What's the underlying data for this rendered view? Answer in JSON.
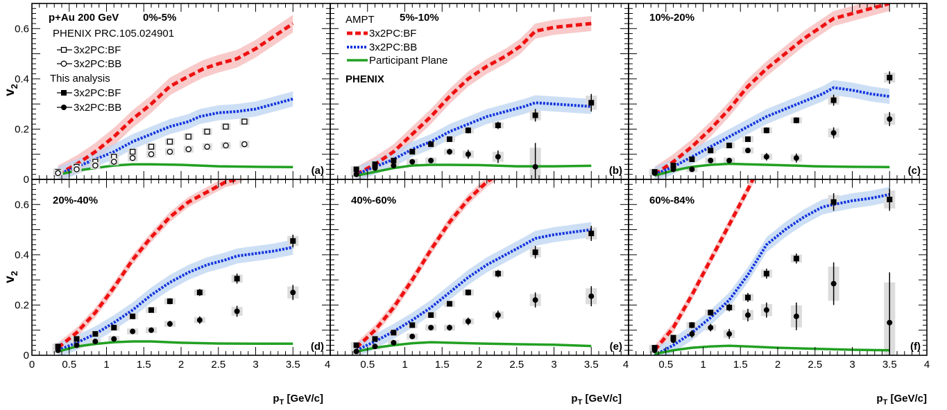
{
  "figure": {
    "ylabel": "v",
    "ylabel_sub": "2",
    "xlabel": "p",
    "xlabel_sub": "T",
    "xlabel_unit": " [GeV/c]"
  },
  "legends": {
    "system": "p+Au 200 GeV",
    "phenix_ref": "PHENIX PRC.105.024901",
    "this_analysis": "This analysis",
    "bf": "3x2PC:BF",
    "bb": "3x2PC:BB",
    "ampt": "AMPT",
    "participant_plane": "Participant Plane",
    "phenix": "PHENIX"
  },
  "colors": {
    "ampt_bf": "#ee1111",
    "ampt_bb": "#1133dd",
    "participant_plane": "#22a022",
    "ampt_bf_band": "#f7b8b8",
    "ampt_bb_band": "#bcd4f2",
    "syst_box": "#dcdcdc"
  },
  "chart_data": [
    {
      "type": "scatter",
      "panel_label": "(a)",
      "centrality": "0%-5%",
      "xlim": [
        0,
        4
      ],
      "ylim": [
        0,
        0.7
      ],
      "x_ticks": [
        "0",
        "0.5",
        "1",
        "1.5",
        "2",
        "2.5",
        "3",
        "3.5",
        "4"
      ],
      "y_ticks": [
        "0",
        "0.2",
        "0.4",
        "0.6"
      ],
      "ampt_bf": {
        "x": [
          0.35,
          0.6,
          0.85,
          1.1,
          1.35,
          1.6,
          1.85,
          2.1,
          2.3,
          2.5,
          2.75,
          3.0,
          3.25,
          3.5
        ],
        "y": [
          0.02,
          0.06,
          0.11,
          0.17,
          0.24,
          0.3,
          0.37,
          0.41,
          0.44,
          0.46,
          0.48,
          0.52,
          0.57,
          0.62
        ],
        "band": 0.035
      },
      "ampt_bb": {
        "x": [
          0.35,
          0.6,
          0.85,
          1.1,
          1.35,
          1.6,
          1.85,
          2.1,
          2.25,
          2.5,
          2.75,
          3.0,
          3.25,
          3.5
        ],
        "y": [
          0.02,
          0.05,
          0.08,
          0.11,
          0.15,
          0.18,
          0.21,
          0.23,
          0.25,
          0.265,
          0.27,
          0.28,
          0.3,
          0.32
        ],
        "band": 0.03
      },
      "participant_plane": {
        "x": [
          0.35,
          0.6,
          0.85,
          1.1,
          1.35,
          1.6,
          2.0,
          2.5,
          3.0,
          3.5
        ],
        "y": [
          0.018,
          0.035,
          0.045,
          0.055,
          0.06,
          0.06,
          0.058,
          0.052,
          0.05,
          0.049
        ]
      },
      "phenix_bf": {
        "x": [
          0.35,
          0.6,
          0.85,
          1.1,
          1.35,
          1.6,
          1.85,
          2.1,
          2.35,
          2.6,
          2.85
        ],
        "y": [
          0.03,
          0.05,
          0.07,
          0.09,
          0.11,
          0.13,
          0.15,
          0.17,
          0.19,
          0.21,
          0.23
        ]
      },
      "phenix_bb": {
        "x": [
          0.35,
          0.6,
          0.85,
          1.1,
          1.35,
          1.6,
          1.85,
          2.1,
          2.35,
          2.6,
          2.85
        ],
        "y": [
          0.025,
          0.04,
          0.055,
          0.07,
          0.085,
          0.1,
          0.11,
          0.12,
          0.13,
          0.135,
          0.14
        ]
      },
      "this_bf": {
        "x": [],
        "y": [],
        "err": []
      },
      "this_bb": {
        "x": [],
        "y": [],
        "err": []
      }
    },
    {
      "type": "scatter",
      "panel_label": "(b)",
      "centrality": "5%-10%",
      "xlim": [
        0,
        4
      ],
      "ylim": [
        0,
        0.7
      ],
      "x_ticks": [
        "0",
        "0.5",
        "1",
        "1.5",
        "2",
        "2.5",
        "3",
        "3.5",
        "4"
      ],
      "y_ticks": [
        "0",
        "0.2",
        "0.4",
        "0.6"
      ],
      "ampt_bf": {
        "x": [
          0.35,
          0.6,
          0.85,
          1.1,
          1.35,
          1.6,
          1.85,
          2.1,
          2.35,
          2.55,
          2.75,
          3.0,
          3.5
        ],
        "y": [
          0.02,
          0.06,
          0.11,
          0.18,
          0.25,
          0.33,
          0.4,
          0.45,
          0.49,
          0.53,
          0.59,
          0.605,
          0.62
        ],
        "band": 0.03
      },
      "ampt_bb": {
        "x": [
          0.35,
          0.6,
          0.85,
          1.1,
          1.35,
          1.6,
          1.85,
          2.1,
          2.35,
          2.6,
          2.75,
          3.0,
          3.5
        ],
        "y": [
          0.02,
          0.05,
          0.08,
          0.12,
          0.15,
          0.19,
          0.22,
          0.25,
          0.27,
          0.29,
          0.305,
          0.3,
          0.29
        ],
        "band": 0.03
      },
      "participant_plane": {
        "x": [
          0.35,
          0.6,
          0.85,
          1.1,
          1.35,
          1.6,
          2.0,
          2.5,
          3.0,
          3.5
        ],
        "y": [
          0.015,
          0.03,
          0.045,
          0.055,
          0.058,
          0.058,
          0.057,
          0.052,
          0.052,
          0.054
        ]
      },
      "phenix_bf": {
        "x": [],
        "y": []
      },
      "phenix_bb": {
        "x": [],
        "y": []
      },
      "this_bf": {
        "x": [
          0.35,
          0.6,
          0.85,
          1.1,
          1.35,
          1.6,
          1.85,
          2.25,
          2.75,
          3.5
        ],
        "y": [
          0.04,
          0.06,
          0.075,
          0.11,
          0.14,
          0.16,
          0.195,
          0.215,
          0.255,
          0.305
        ],
        "err": [
          0.005,
          0.006,
          0.007,
          0.008,
          0.009,
          0.01,
          0.012,
          0.015,
          0.025,
          0.035
        ]
      },
      "this_bb": {
        "x": [
          0.35,
          0.6,
          0.85,
          1.1,
          1.35,
          1.6,
          1.85,
          2.25,
          2.75
        ],
        "y": [
          0.02,
          0.045,
          0.055,
          0.07,
          0.075,
          0.11,
          0.1,
          0.09,
          0.05
        ],
        "err": [
          0.005,
          0.006,
          0.007,
          0.008,
          0.01,
          0.012,
          0.018,
          0.025,
          0.095
        ]
      }
    },
    {
      "type": "scatter",
      "panel_label": "(c)",
      "centrality": "10%-20%",
      "xlim": [
        0,
        4
      ],
      "ylim": [
        0,
        0.7
      ],
      "x_ticks": [
        "0",
        "0.5",
        "1",
        "1.5",
        "2",
        "2.5",
        "3",
        "3.5",
        "4"
      ],
      "y_ticks": [
        "0",
        "0.2",
        "0.4",
        "0.6"
      ],
      "ampt_bf": {
        "x": [
          0.35,
          0.6,
          0.85,
          1.1,
          1.35,
          1.6,
          1.85,
          2.1,
          2.35,
          2.55,
          2.75,
          3.0,
          3.25,
          3.5
        ],
        "y": [
          0.02,
          0.07,
          0.13,
          0.2,
          0.28,
          0.37,
          0.44,
          0.5,
          0.56,
          0.6,
          0.64,
          0.66,
          0.68,
          0.7
        ],
        "band": 0.03
      },
      "ampt_bb": {
        "x": [
          0.35,
          0.6,
          0.85,
          1.1,
          1.35,
          1.6,
          1.85,
          2.1,
          2.35,
          2.6,
          2.75,
          3.0,
          3.25,
          3.5
        ],
        "y": [
          0.02,
          0.05,
          0.09,
          0.13,
          0.17,
          0.21,
          0.25,
          0.28,
          0.31,
          0.34,
          0.365,
          0.355,
          0.34,
          0.33
        ],
        "band": 0.03
      },
      "participant_plane": {
        "x": [
          0.35,
          0.6,
          0.85,
          1.1,
          1.35,
          1.6,
          2.0,
          2.5,
          3.0,
          3.5
        ],
        "y": [
          0.015,
          0.035,
          0.05,
          0.058,
          0.062,
          0.06,
          0.057,
          0.052,
          0.05,
          0.049
        ]
      },
      "phenix_bf": {
        "x": [],
        "y": []
      },
      "phenix_bb": {
        "x": [],
        "y": []
      },
      "this_bf": {
        "x": [
          0.35,
          0.6,
          0.85,
          1.1,
          1.35,
          1.6,
          1.85,
          2.25,
          2.75,
          3.5
        ],
        "y": [
          0.03,
          0.055,
          0.08,
          0.115,
          0.135,
          0.16,
          0.195,
          0.235,
          0.315,
          0.405
        ],
        "err": [
          0.005,
          0.006,
          0.007,
          0.008,
          0.009,
          0.01,
          0.012,
          0.012,
          0.022,
          0.025
        ]
      },
      "this_bb": {
        "x": [
          0.35,
          0.6,
          0.85,
          1.1,
          1.35,
          1.6,
          1.85,
          2.25,
          2.75,
          3.5
        ],
        "y": [
          0.025,
          0.04,
          0.04,
          0.075,
          0.075,
          0.115,
          0.09,
          0.085,
          0.185,
          0.24
        ],
        "err": [
          0.005,
          0.006,
          0.007,
          0.008,
          0.009,
          0.01,
          0.015,
          0.018,
          0.022,
          0.028
        ]
      }
    },
    {
      "type": "scatter",
      "panel_label": "(d)",
      "centrality": "20%-40%",
      "xlim": [
        0,
        4
      ],
      "ylim": [
        0,
        0.7
      ],
      "x_ticks": [
        "0",
        "0.5",
        "1",
        "1.5",
        "2",
        "2.5",
        "3",
        "3.5",
        "4"
      ],
      "y_ticks": [
        "0",
        "0.2",
        "0.4",
        "0.6"
      ],
      "ampt_bf": {
        "x": [
          0.35,
          0.6,
          0.85,
          1.1,
          1.35,
          1.6,
          1.85,
          2.1,
          2.35,
          2.6,
          2.75,
          2.85
        ],
        "y": [
          0.03,
          0.09,
          0.17,
          0.27,
          0.38,
          0.47,
          0.55,
          0.61,
          0.65,
          0.69,
          0.7,
          0.72
        ],
        "band": 0.02
      },
      "ampt_bb": {
        "x": [
          0.35,
          0.6,
          0.85,
          1.1,
          1.35,
          1.6,
          1.85,
          2.1,
          2.35,
          2.6,
          2.75,
          3.0,
          3.25,
          3.5
        ],
        "y": [
          0.02,
          0.05,
          0.085,
          0.13,
          0.18,
          0.24,
          0.29,
          0.33,
          0.36,
          0.38,
          0.395,
          0.405,
          0.415,
          0.43
        ],
        "band": 0.03
      },
      "participant_plane": {
        "x": [
          0.35,
          0.6,
          0.85,
          1.1,
          1.35,
          1.6,
          2.0,
          2.5,
          3.0,
          3.5
        ],
        "y": [
          0.015,
          0.035,
          0.045,
          0.052,
          0.055,
          0.055,
          0.05,
          0.047,
          0.046,
          0.046
        ]
      },
      "phenix_bf": {
        "x": [],
        "y": []
      },
      "phenix_bb": {
        "x": [],
        "y": []
      },
      "this_bf": {
        "x": [
          0.35,
          0.6,
          0.85,
          1.1,
          1.35,
          1.6,
          1.85,
          2.25,
          2.75,
          3.5
        ],
        "y": [
          0.035,
          0.065,
          0.085,
          0.11,
          0.155,
          0.18,
          0.215,
          0.25,
          0.305,
          0.455
        ],
        "err": [
          0.005,
          0.006,
          0.007,
          0.008,
          0.009,
          0.01,
          0.012,
          0.014,
          0.02,
          0.025
        ]
      },
      "this_bb": {
        "x": [
          0.35,
          0.6,
          0.85,
          1.1,
          1.35,
          1.6,
          1.85,
          2.25,
          2.75,
          3.5
        ],
        "y": [
          0.02,
          0.04,
          0.055,
          0.065,
          0.095,
          0.1,
          0.125,
          0.14,
          0.175,
          0.25
        ],
        "err": [
          0.005,
          0.006,
          0.007,
          0.008,
          0.009,
          0.01,
          0.012,
          0.015,
          0.022,
          0.03
        ]
      }
    },
    {
      "type": "scatter",
      "panel_label": "(e)",
      "centrality": "40%-60%",
      "xlim": [
        0,
        4
      ],
      "ylim": [
        0,
        0.7
      ],
      "x_ticks": [
        "0",
        "0.5",
        "1",
        "1.5",
        "2",
        "2.5",
        "3",
        "3.5",
        "4"
      ],
      "y_ticks": [
        "0",
        "0.2",
        "0.4",
        "0.6"
      ],
      "ampt_bf": {
        "x": [
          0.35,
          0.6,
          0.85,
          1.1,
          1.35,
          1.6,
          1.85,
          2.1,
          2.25
        ],
        "y": [
          0.03,
          0.1,
          0.19,
          0.3,
          0.42,
          0.53,
          0.62,
          0.69,
          0.72
        ],
        "band": 0.02
      },
      "ampt_bb": {
        "x": [
          0.35,
          0.6,
          0.85,
          1.1,
          1.35,
          1.6,
          1.85,
          2.1,
          2.35,
          2.6,
          2.75,
          3.0,
          3.25,
          3.5
        ],
        "y": [
          0.02,
          0.055,
          0.095,
          0.14,
          0.19,
          0.25,
          0.31,
          0.36,
          0.4,
          0.44,
          0.465,
          0.48,
          0.49,
          0.5
        ],
        "band": 0.03
      },
      "participant_plane": {
        "x": [
          0.35,
          0.6,
          0.85,
          1.1,
          1.35,
          1.6,
          2.0,
          2.5,
          3.0,
          3.5
        ],
        "y": [
          0.015,
          0.03,
          0.04,
          0.048,
          0.052,
          0.05,
          0.047,
          0.044,
          0.042,
          0.037
        ]
      },
      "phenix_bf": {
        "x": [],
        "y": []
      },
      "phenix_bb": {
        "x": [],
        "y": []
      },
      "this_bf": {
        "x": [
          0.35,
          0.6,
          0.85,
          1.1,
          1.35,
          1.6,
          1.85,
          2.25,
          2.75,
          3.5
        ],
        "y": [
          0.04,
          0.065,
          0.09,
          0.12,
          0.16,
          0.205,
          0.25,
          0.325,
          0.41,
          0.485
        ],
        "err": [
          0.005,
          0.006,
          0.007,
          0.008,
          0.01,
          0.01,
          0.012,
          0.015,
          0.025,
          0.03
        ]
      },
      "this_bb": {
        "x": [
          0.35,
          0.6,
          0.85,
          1.1,
          1.35,
          1.6,
          1.85,
          2.25,
          2.75,
          3.5
        ],
        "y": [
          0.015,
          0.035,
          0.05,
          0.075,
          0.11,
          0.11,
          0.135,
          0.16,
          0.22,
          0.235
        ],
        "err": [
          0.005,
          0.006,
          0.007,
          0.008,
          0.01,
          0.012,
          0.015,
          0.018,
          0.03,
          0.04
        ]
      }
    },
    {
      "type": "scatter",
      "panel_label": "(f)",
      "centrality": "60%-84%",
      "xlim": [
        0,
        4
      ],
      "ylim": [
        0,
        0.7
      ],
      "x_ticks": [
        "0",
        "0.5",
        "1",
        "1.5",
        "2",
        "2.5",
        "3",
        "3.5",
        "4"
      ],
      "y_ticks": [
        "0",
        "0.2",
        "0.4",
        "0.6"
      ],
      "ampt_bf": {
        "x": [
          0.35,
          0.6,
          0.85,
          1.1,
          1.35,
          1.6,
          1.7
        ],
        "y": [
          0.02,
          0.11,
          0.24,
          0.38,
          0.52,
          0.66,
          0.72
        ],
        "band": 0.02
      },
      "ampt_bb": {
        "x": [
          0.35,
          0.6,
          0.85,
          1.1,
          1.35,
          1.6,
          1.85,
          2.1,
          2.35,
          2.6,
          2.75,
          3.0,
          3.25,
          3.5
        ],
        "y": [
          0.0,
          0.04,
          0.09,
          0.15,
          0.22,
          0.32,
          0.44,
          0.5,
          0.55,
          0.59,
          0.6,
          0.615,
          0.625,
          0.64
        ],
        "band": 0.03
      },
      "participant_plane": {
        "x": [
          0.35,
          0.6,
          0.85,
          1.1,
          1.35,
          1.6,
          2.0,
          2.5,
          3.0,
          3.5
        ],
        "y": [
          0.005,
          0.02,
          0.03,
          0.035,
          0.038,
          0.035,
          0.03,
          0.026,
          0.022,
          0.02
        ]
      },
      "phenix_bf": {
        "x": [],
        "y": []
      },
      "phenix_bb": {
        "x": [],
        "y": []
      },
      "this_bf": {
        "x": [
          0.35,
          0.6,
          0.85,
          1.1,
          1.35,
          1.6,
          1.85,
          2.25,
          2.75,
          3.5
        ],
        "y": [
          0.03,
          0.07,
          0.12,
          0.17,
          0.19,
          0.23,
          0.325,
          0.385,
          0.61,
          0.62
        ],
        "err": [
          0.008,
          0.01,
          0.012,
          0.012,
          0.015,
          0.018,
          0.02,
          0.02,
          0.035,
          0.045
        ]
      },
      "this_bb": {
        "x": [
          0.35,
          0.6,
          0.85,
          1.1,
          1.35,
          1.6,
          1.85,
          2.25,
          2.75,
          3.5
        ],
        "y": [
          0.02,
          0.06,
          0.085,
          0.11,
          0.085,
          0.16,
          0.18,
          0.155,
          0.285,
          0.13
        ],
        "err": [
          0.008,
          0.012,
          0.015,
          0.015,
          0.02,
          0.025,
          0.03,
          0.055,
          0.085,
          0.2
        ]
      }
    }
  ]
}
